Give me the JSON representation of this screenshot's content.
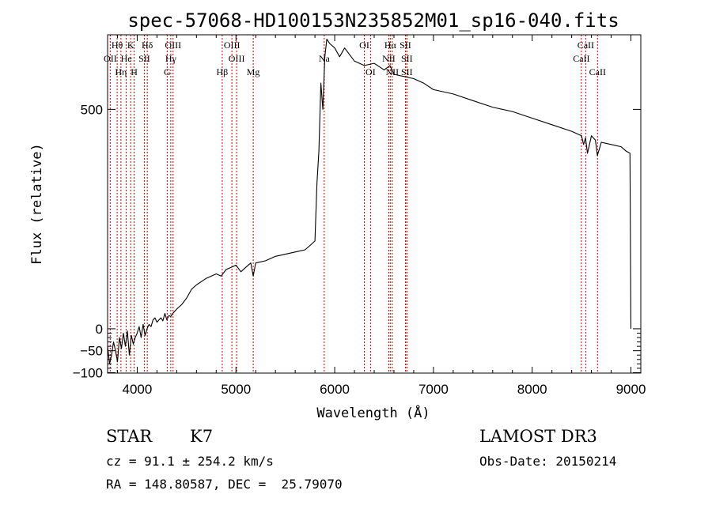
{
  "chart_data": {
    "type": "line",
    "title": "spec-57068-HD100153N235852M01_sp16-040.fits",
    "xlabel": "Wavelength (Å)",
    "ylabel": "Flux (relative)",
    "xlim": [
      3700,
      9100
    ],
    "ylim": [
      -101,
      670
    ],
    "xticks": [
      {
        "value": 4000,
        "label": "4000"
      },
      {
        "value": 5000,
        "label": "5000"
      },
      {
        "value": 6000,
        "label": "6000"
      },
      {
        "value": 7000,
        "label": "7000"
      },
      {
        "value": 8000,
        "label": "8000"
      },
      {
        "value": 9000,
        "label": "9000"
      }
    ],
    "yticks": [
      {
        "value": -100,
        "label": "−100"
      },
      {
        "value": -50,
        "label": "−50"
      },
      {
        "value": 0,
        "label": "0"
      },
      {
        "value": 500,
        "label": "500"
      }
    ],
    "grid": false,
    "series": [
      {
        "color": "#000000",
        "x": [
          3700,
          3720,
          3740,
          3760,
          3780,
          3800,
          3820,
          3840,
          3860,
          3880,
          3900,
          3920,
          3940,
          3960,
          3980,
          4000,
          4020,
          4040,
          4060,
          4080,
          4100,
          4120,
          4140,
          4160,
          4180,
          4200,
          4220,
          4240,
          4260,
          4280,
          4300,
          4320,
          4340,
          4360,
          4380,
          4400,
          4450,
          4500,
          4550,
          4600,
          4700,
          4800,
          4850,
          4900,
          4950,
          5000,
          5050,
          5100,
          5150,
          5175,
          5200,
          5300,
          5400,
          5500,
          5600,
          5700,
          5750,
          5800,
          5820,
          5840,
          5860,
          5880,
          5900,
          5920,
          5950,
          6000,
          6050,
          6100,
          6200,
          6300,
          6400,
          6500,
          6560,
          6600,
          6700,
          6800,
          6900,
          7000,
          7200,
          7400,
          7600,
          7800,
          8000,
          8200,
          8400,
          8500,
          8520,
          8540,
          8560,
          8600,
          8640,
          8660,
          8700,
          8800,
          8900,
          8950,
          8990,
          9000
        ],
        "y": [
          -40,
          -80,
          -60,
          -30,
          -50,
          -75,
          -20,
          -45,
          -10,
          -40,
          -5,
          -60,
          -15,
          -35,
          -20,
          -10,
          5,
          -20,
          10,
          -15,
          0,
          10,
          5,
          20,
          25,
          15,
          20,
          25,
          18,
          35,
          20,
          30,
          28,
          35,
          40,
          45,
          55,
          70,
          90,
          100,
          115,
          125,
          120,
          135,
          140,
          145,
          130,
          140,
          150,
          120,
          150,
          155,
          165,
          170,
          175,
          180,
          190,
          200,
          330,
          405,
          560,
          500,
          620,
          660,
          650,
          640,
          620,
          640,
          610,
          600,
          605,
          590,
          600,
          580,
          575,
          570,
          560,
          545,
          535,
          520,
          505,
          495,
          480,
          465,
          450,
          440,
          420,
          435,
          400,
          440,
          430,
          395,
          425,
          420,
          415,
          405,
          400,
          0
        ]
      }
    ],
    "spectral_lines": [
      {
        "name": "Hθ",
        "wavelength": 3797,
        "row": 1
      },
      {
        "name": "OII",
        "wavelength": 3727,
        "row": 2
      },
      {
        "name": "Hη",
        "wavelength": 3835,
        "row": 3
      },
      {
        "name": "K",
        "wavelength": 3934,
        "row": 1
      },
      {
        "name": "He",
        "wavelength": 3889,
        "row": 2
      },
      {
        "name": "H",
        "wavelength": 3969,
        "row": 3
      },
      {
        "name": "Hδ",
        "wavelength": 4102,
        "row": 1
      },
      {
        "name": "SII",
        "wavelength": 4072,
        "row": 2
      },
      {
        "name": "OIII",
        "wavelength": 4363,
        "row": 1
      },
      {
        "name": "Hγ",
        "wavelength": 4340,
        "row": 2
      },
      {
        "name": "G",
        "wavelength": 4304,
        "row": 3
      },
      {
        "name": "OIII",
        "wavelength": 4959,
        "row": 1
      },
      {
        "name": "OIII",
        "wavelength": 5007,
        "row": 2
      },
      {
        "name": "Hβ",
        "wavelength": 4861,
        "row": 3
      },
      {
        "name": "Mg",
        "wavelength": 5175,
        "row": 3
      },
      {
        "name": "Na",
        "wavelength": 5894,
        "row": 2
      },
      {
        "name": "OI",
        "wavelength": 6300,
        "row": 1
      },
      {
        "name": "OI",
        "wavelength": 6363,
        "row": 3
      },
      {
        "name": "Hα",
        "wavelength": 6563,
        "row": 1
      },
      {
        "name": "SII",
        "wavelength": 6716,
        "row": 1
      },
      {
        "name": "NII",
        "wavelength": 6548,
        "row": 2
      },
      {
        "name": "NII",
        "wavelength": 6583,
        "row": 3
      },
      {
        "name": "SII",
        "wavelength": 6731,
        "row": 2
      },
      {
        "name": "SII",
        "wavelength": 6731,
        "row": 3
      },
      {
        "name": "CaII",
        "wavelength": 8542,
        "row": 1
      },
      {
        "name": "CaII",
        "wavelength": 8498,
        "row": 2
      },
      {
        "name": "CaII",
        "wavelength": 8662,
        "row": 3
      }
    ],
    "line_color": "#cc0000"
  },
  "info": {
    "object_class": "STAR",
    "subclass": "K7",
    "survey": "LAMOST DR3",
    "redshift": "cz = 91.1 ± 254.2 km/s",
    "obs_date": "Obs-Date: 20150214",
    "coords": "RA = 148.80587, DEC =  25.79070"
  }
}
